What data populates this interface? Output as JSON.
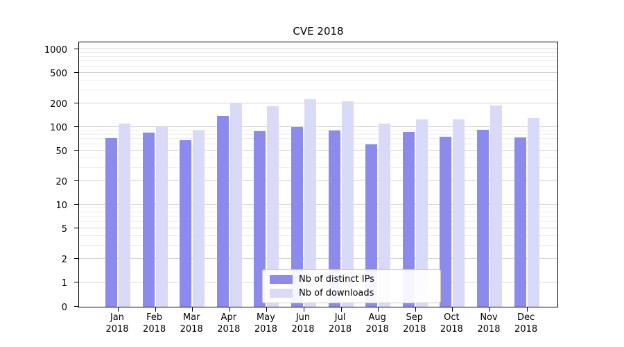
{
  "chart_data": {
    "type": "bar",
    "title": "CVE 2018",
    "categories": [
      "Jan 2018",
      "Feb 2018",
      "Mar 2018",
      "Apr 2018",
      "May 2018",
      "Jun 2018",
      "Jul 2018",
      "Aug 2018",
      "Sep 2018",
      "Oct 2018",
      "Nov 2018",
      "Dec 2018"
    ],
    "series": [
      {
        "name": "Nb of distinct IPs",
        "color": "#8b8bed",
        "values": [
          72,
          85,
          67,
          140,
          88,
          100,
          90,
          60,
          87,
          75,
          93,
          73
        ]
      },
      {
        "name": "Nb of downloads",
        "color": "#d9d9f8",
        "values": [
          112,
          100,
          90,
          205,
          185,
          230,
          215,
          112,
          125,
          125,
          188,
          130
        ]
      }
    ],
    "yscale": "symlog",
    "yticks": [
      0,
      1,
      2,
      5,
      10,
      20,
      50,
      100,
      200,
      500,
      1000
    ],
    "ylim": [
      0,
      1300
    ],
    "xlabel": "",
    "ylabel": "",
    "grid": "horizontal",
    "legend_position": "lower center"
  }
}
